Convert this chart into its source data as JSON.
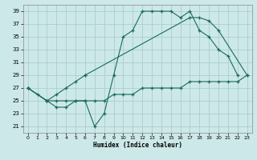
{
  "xlabel": "Humidex (Indice chaleur)",
  "bg_color": "#cde8e8",
  "grid_color": "#aacece",
  "line_color": "#1a6b5a",
  "xlim": [
    -0.5,
    23.5
  ],
  "ylim": [
    20.0,
    40.0
  ],
  "yticks": [
    21,
    23,
    25,
    27,
    29,
    31,
    33,
    35,
    37,
    39
  ],
  "xticks": [
    0,
    1,
    2,
    3,
    4,
    5,
    6,
    7,
    8,
    9,
    10,
    11,
    12,
    13,
    14,
    15,
    16,
    17,
    18,
    19,
    20,
    21,
    22,
    23
  ],
  "line1_x": [
    0,
    1,
    2,
    3,
    4,
    5,
    6,
    7,
    8,
    9,
    10,
    11,
    12,
    13,
    14,
    15,
    16,
    17,
    18,
    19,
    20,
    21,
    22
  ],
  "line1_y": [
    27,
    26,
    25,
    24,
    24,
    25,
    25,
    21,
    23,
    29,
    35,
    36,
    39,
    39,
    39,
    39,
    38,
    39,
    36,
    35,
    33,
    32,
    29
  ],
  "line2_x": [
    0,
    2,
    3,
    4,
    5,
    6,
    7,
    8,
    9,
    10,
    11,
    12,
    13,
    14,
    15,
    16,
    17,
    18,
    19,
    20,
    21,
    22,
    23
  ],
  "line2_y": [
    27,
    25,
    25,
    25,
    25,
    25,
    25,
    25,
    26,
    26,
    26,
    27,
    27,
    27,
    27,
    27,
    28,
    28,
    28,
    28,
    28,
    28,
    29
  ],
  "line3_seg1_x": [
    0,
    2,
    3,
    4,
    5,
    6
  ],
  "line3_seg1_y": [
    27,
    25,
    26,
    27,
    28,
    29
  ],
  "line3_seg2_x": [
    6,
    17,
    18,
    19,
    20,
    23
  ],
  "line3_seg2_y": [
    29,
    38,
    38,
    37.5,
    36,
    29
  ]
}
